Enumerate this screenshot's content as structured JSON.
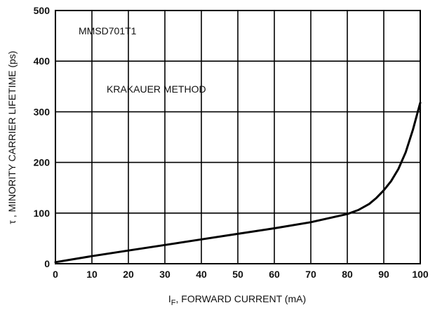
{
  "chart_data": {
    "type": "line",
    "xlabel_main": "I",
    "xlabel_sub": "F",
    "xlabel_rest": ", FORWARD CURRENT (mA)",
    "ylabel": "τ , MINORITY CARRIER LIFETIME (ps)",
    "xlim": [
      0,
      100
    ],
    "ylim": [
      0,
      500
    ],
    "x_ticks": [
      "0",
      "10",
      "20",
      "30",
      "40",
      "50",
      "60",
      "70",
      "80",
      "90",
      "100"
    ],
    "y_ticks": [
      "0",
      "100",
      "200",
      "300",
      "400",
      "500"
    ],
    "grid": true,
    "annotations": [
      "MMSD701T1",
      "KRAKAUER METHOD"
    ],
    "series": [
      {
        "x": [
          0,
          10,
          20,
          30,
          40,
          50,
          60,
          70,
          80,
          83,
          86,
          88,
          90,
          92,
          94,
          96,
          98,
          100
        ],
        "y": [
          3,
          15,
          26,
          37,
          48,
          59,
          70,
          82,
          98,
          106,
          118,
          130,
          145,
          163,
          187,
          220,
          265,
          318
        ]
      }
    ]
  }
}
